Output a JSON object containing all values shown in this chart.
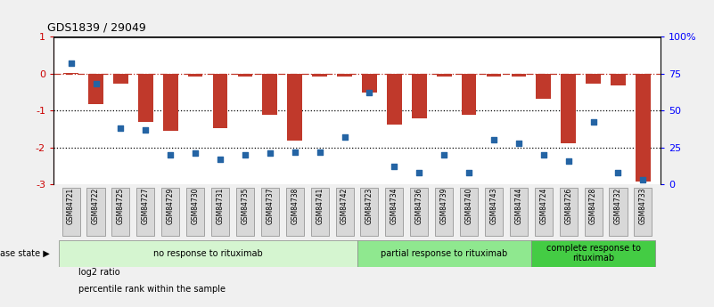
{
  "title": "GDS1839 / 29049",
  "samples": [
    "GSM84721",
    "GSM84722",
    "GSM84725",
    "GSM84727",
    "GSM84729",
    "GSM84730",
    "GSM84731",
    "GSM84735",
    "GSM84737",
    "GSM84738",
    "GSM84741",
    "GSM84742",
    "GSM84723",
    "GSM84734",
    "GSM84736",
    "GSM84739",
    "GSM84740",
    "GSM84743",
    "GSM84744",
    "GSM84724",
    "GSM84726",
    "GSM84728",
    "GSM84732",
    "GSM84733"
  ],
  "log2_ratio": [
    0.02,
    -0.82,
    -0.28,
    -1.32,
    -1.55,
    -0.08,
    -1.48,
    -0.07,
    -1.12,
    -1.82,
    -0.07,
    -0.07,
    -0.52,
    -1.38,
    -1.22,
    -0.08,
    -1.12,
    -0.08,
    -0.07,
    -0.68,
    -1.88,
    -0.28,
    -0.32,
    -2.92
  ],
  "percentile_rank": [
    82,
    68,
    38,
    37,
    20,
    21,
    17,
    20,
    21,
    22,
    22,
    32,
    62,
    12,
    8,
    20,
    8,
    30,
    28,
    20,
    16,
    42,
    8,
    3
  ],
  "bar_color": "#c0392b",
  "dot_color": "#2464a4",
  "ylim_left": [
    -3,
    1
  ],
  "ylim_right": [
    0,
    100
  ],
  "yticks_left": [
    1,
    0,
    -1,
    -2,
    -3
  ],
  "yticks_right": [
    0,
    25,
    50,
    75,
    100
  ],
  "ytick_labels_right": [
    "0",
    "25",
    "50",
    "75",
    "100%"
  ],
  "hline_positions": [
    0,
    -1,
    -2
  ],
  "hline_styles": [
    "dashdot",
    "dotted",
    "dotted"
  ],
  "hline_colors": [
    "#c0392b",
    "black",
    "black"
  ],
  "groups": [
    {
      "label": "no response to rituximab",
      "start": 0,
      "end": 12,
      "color": "#d5f5d0"
    },
    {
      "label": "partial response to rituximab",
      "start": 12,
      "end": 19,
      "color": "#8fe88f"
    },
    {
      "label": "complete response to\nrituximab",
      "start": 19,
      "end": 24,
      "color": "#44cc44"
    }
  ],
  "disease_state_label": "disease state",
  "legend_items": [
    {
      "label": "log2 ratio",
      "color": "#c0392b"
    },
    {
      "label": "percentile rank within the sample",
      "color": "#2464a4"
    }
  ],
  "background_color": "#f0f0f0",
  "plot_bg_color": "#ffffff"
}
